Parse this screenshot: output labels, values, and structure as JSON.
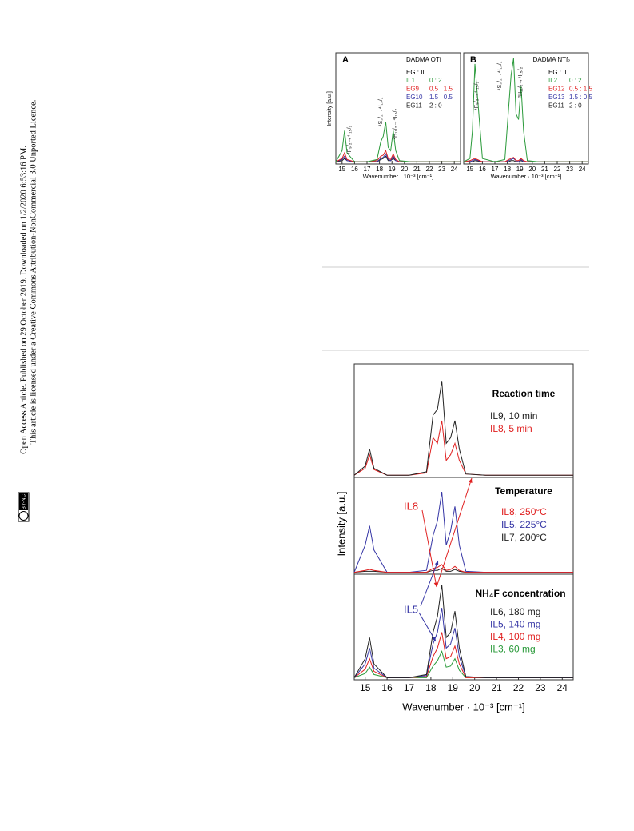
{
  "sidebar": {
    "line1": "Open Access Article. Published on 29 October 2019. Downloaded on 1/2/2020 6:53:16 PM.",
    "line2": "This article is licensed under a Creative Commons Attribution-NonCommercial 3.0 Unported Licence.",
    "badge": "BY-NC"
  },
  "chart_data": [
    {
      "type": "line",
      "label": "A",
      "title": "DADMA OTf",
      "ylabel": "Intensity [a.u.]",
      "xlabel": "Wavenumber · 10⁻³ [cm⁻¹]",
      "legend_title": "EG : IL",
      "annotations": [
        "⁴F₉/₂→⁴I₁₅/₂",
        "⁴S₃/₂→⁴I₁₅/₂",
        "²H₁₁/₂→⁴I₁₅/₂"
      ],
      "x": [
        14.5,
        15,
        15.2,
        15.4,
        16,
        17,
        17.8,
        18.1,
        18.3,
        18.5,
        18.7,
        18.9,
        19.1,
        19.3,
        19.6,
        20.5,
        24.5
      ],
      "xlim": [
        14.5,
        24.5
      ],
      "ylim": [
        0,
        1
      ],
      "xticks": [
        15,
        16,
        17,
        18,
        19,
        20,
        21,
        22,
        23,
        24
      ],
      "series": [
        {
          "name": "IL1",
          "ratio": "0 : 2",
          "color": "#2a9a3a",
          "values": [
            0.02,
            0.12,
            0.3,
            0.1,
            0.02,
            0.02,
            0.04,
            0.2,
            0.25,
            0.38,
            0.15,
            0.12,
            0.3,
            0.12,
            0.03,
            0.02,
            0.02
          ]
        },
        {
          "name": "EG9",
          "ratio": "0.5 : 1.5",
          "color": "#e02020",
          "values": [
            0.02,
            0.05,
            0.1,
            0.04,
            0.02,
            0.02,
            0.03,
            0.07,
            0.08,
            0.12,
            0.05,
            0.04,
            0.09,
            0.04,
            0.02,
            0.02,
            0.02
          ]
        },
        {
          "name": "EG10",
          "ratio": "1.5 : 0.5",
          "color": "#3535a5",
          "values": [
            0.02,
            0.04,
            0.07,
            0.03,
            0.02,
            0.02,
            0.02,
            0.05,
            0.06,
            0.09,
            0.04,
            0.03,
            0.07,
            0.03,
            0.02,
            0.02,
            0.02
          ]
        },
        {
          "name": "EG11",
          "ratio": "2 : 0",
          "color": "#222222",
          "values": [
            0.02,
            0.03,
            0.05,
            0.03,
            0.02,
            0.02,
            0.02,
            0.04,
            0.05,
            0.07,
            0.03,
            0.03,
            0.05,
            0.03,
            0.02,
            0.02,
            0.02
          ]
        }
      ]
    },
    {
      "type": "line",
      "label": "B",
      "title": "DADMA NTf₂",
      "xlabel": "Wavenumber · 10⁻³ [cm⁻¹]",
      "legend_title": "EG : IL",
      "annotations": [
        "⁴F₉/₂→⁴I₁₅/₂",
        "⁴S₃/₂→⁴I₁₅/₂",
        "²H₁₁/₂→⁴I₁₅/₂"
      ],
      "x": [
        14.5,
        15,
        15.2,
        15.4,
        16,
        17,
        17.8,
        18.1,
        18.3,
        18.5,
        18.7,
        18.9,
        19.1,
        19.3,
        19.6,
        20.5,
        24.5
      ],
      "xlim": [
        14.5,
        24.5
      ],
      "ylim": [
        0,
        1
      ],
      "xticks": [
        15,
        16,
        17,
        18,
        19,
        20,
        21,
        22,
        23,
        24
      ],
      "series": [
        {
          "name": "IL2",
          "ratio": "0 : 2",
          "color": "#2a9a3a",
          "values": [
            0.02,
            0.05,
            0.3,
            0.9,
            0.05,
            0.02,
            0.04,
            0.5,
            0.8,
            0.95,
            0.45,
            0.4,
            0.7,
            0.3,
            0.03,
            0.02,
            0.02
          ]
        },
        {
          "name": "EG12",
          "ratio": "0.5 : 1.5",
          "color": "#e02020",
          "values": [
            0.02,
            0.03,
            0.04,
            0.05,
            0.02,
            0.02,
            0.02,
            0.04,
            0.05,
            0.06,
            0.03,
            0.03,
            0.05,
            0.03,
            0.02,
            0.02,
            0.02
          ]
        },
        {
          "name": "EG13",
          "ratio": "1.5 : 0.5",
          "color": "#3535a5",
          "values": [
            0.02,
            0.02,
            0.03,
            0.04,
            0.02,
            0.02,
            0.02,
            0.03,
            0.04,
            0.05,
            0.03,
            0.02,
            0.04,
            0.02,
            0.02,
            0.02,
            0.02
          ]
        },
        {
          "name": "EG11",
          "ratio": "2 : 0",
          "color": "#222222",
          "values": [
            0.02,
            0.02,
            0.02,
            0.03,
            0.02,
            0.02,
            0.02,
            0.02,
            0.03,
            0.03,
            0.02,
            0.02,
            0.03,
            0.02,
            0.02,
            0.02,
            0.02
          ]
        }
      ]
    },
    {
      "type": "line",
      "title": "Reaction time",
      "x": [
        14.5,
        15,
        15.2,
        15.4,
        16,
        17,
        17.8,
        18.1,
        18.3,
        18.5,
        18.7,
        18.9,
        19.1,
        19.3,
        19.6,
        20.5,
        24.5
      ],
      "xlim": [
        14.5,
        24.5
      ],
      "ylim": [
        0,
        1
      ],
      "series": [
        {
          "name": "IL9, 10 min",
          "color": "#222222",
          "values": [
            0.02,
            0.1,
            0.25,
            0.08,
            0.02,
            0.02,
            0.05,
            0.55,
            0.6,
            0.85,
            0.3,
            0.35,
            0.5,
            0.25,
            0.03,
            0.02,
            0.02
          ]
        },
        {
          "name": "IL8, 5 min",
          "color": "#e02020",
          "values": [
            0.02,
            0.08,
            0.2,
            0.07,
            0.02,
            0.02,
            0.04,
            0.35,
            0.3,
            0.5,
            0.15,
            0.2,
            0.3,
            0.15,
            0.03,
            0.02,
            0.02
          ]
        }
      ]
    },
    {
      "type": "line",
      "title": "Temperature",
      "ylabel": "Intensity [a.u.]",
      "annotations": [
        "IL8"
      ],
      "x": [
        14.5,
        15,
        15.2,
        15.4,
        16,
        17,
        17.8,
        18.1,
        18.3,
        18.5,
        18.7,
        18.9,
        19.1,
        19.3,
        19.6,
        20.5,
        24.5
      ],
      "xlim": [
        14.5,
        24.5
      ],
      "ylim": [
        0,
        1
      ],
      "series": [
        {
          "name": "IL8, 250°C",
          "color": "#e02020",
          "values": [
            0.02,
            0.04,
            0.05,
            0.04,
            0.02,
            0.02,
            0.02,
            0.06,
            0.07,
            0.1,
            0.04,
            0.05,
            0.08,
            0.04,
            0.02,
            0.02,
            0.02
          ]
        },
        {
          "name": "IL5, 225°C",
          "color": "#3535a5",
          "values": [
            0.02,
            0.3,
            0.5,
            0.25,
            0.02,
            0.02,
            0.04,
            0.4,
            0.55,
            0.85,
            0.3,
            0.45,
            0.7,
            0.3,
            0.03,
            0.02,
            0.02
          ]
        },
        {
          "name": "IL7, 200°C",
          "color": "#222222",
          "values": [
            0.02,
            0.03,
            0.03,
            0.03,
            0.02,
            0.02,
            0.02,
            0.04,
            0.04,
            0.06,
            0.03,
            0.03,
            0.05,
            0.03,
            0.02,
            0.02,
            0.02
          ]
        }
      ]
    },
    {
      "type": "line",
      "title": "NH₄F concentration",
      "xlabel": "Wavenumber · 10⁻³ [cm⁻¹]",
      "annotations": [
        "IL5"
      ],
      "x": [
        14.5,
        15,
        15.2,
        15.4,
        16,
        17,
        17.8,
        18.1,
        18.3,
        18.5,
        18.7,
        18.9,
        19.1,
        19.3,
        19.6,
        20.5,
        24.5
      ],
      "xlim": [
        14.5,
        24.5
      ],
      "ylim": [
        0,
        1
      ],
      "xticks": [
        15,
        16,
        17,
        18,
        19,
        20,
        21,
        22,
        23,
        24
      ],
      "series": [
        {
          "name": "IL6, 180 mg",
          "color": "#222222",
          "values": [
            0.02,
            0.2,
            0.4,
            0.15,
            0.02,
            0.02,
            0.05,
            0.45,
            0.6,
            0.9,
            0.4,
            0.45,
            0.65,
            0.3,
            0.03,
            0.02,
            0.02
          ]
        },
        {
          "name": "IL5, 140 mg",
          "color": "#3535a5",
          "values": [
            0.02,
            0.15,
            0.3,
            0.11,
            0.02,
            0.02,
            0.04,
            0.34,
            0.45,
            0.68,
            0.3,
            0.34,
            0.49,
            0.22,
            0.03,
            0.02,
            0.02
          ]
        },
        {
          "name": "IL4, 100 mg",
          "color": "#e02020",
          "values": [
            0.02,
            0.1,
            0.2,
            0.08,
            0.02,
            0.02,
            0.03,
            0.22,
            0.3,
            0.45,
            0.2,
            0.22,
            0.32,
            0.15,
            0.02,
            0.02,
            0.02
          ]
        },
        {
          "name": "IL3, 60 mg",
          "color": "#2a9a3a",
          "values": [
            0.02,
            0.06,
            0.12,
            0.05,
            0.02,
            0.02,
            0.02,
            0.13,
            0.18,
            0.27,
            0.12,
            0.13,
            0.2,
            0.09,
            0.02,
            0.02,
            0.02
          ]
        }
      ]
    }
  ]
}
